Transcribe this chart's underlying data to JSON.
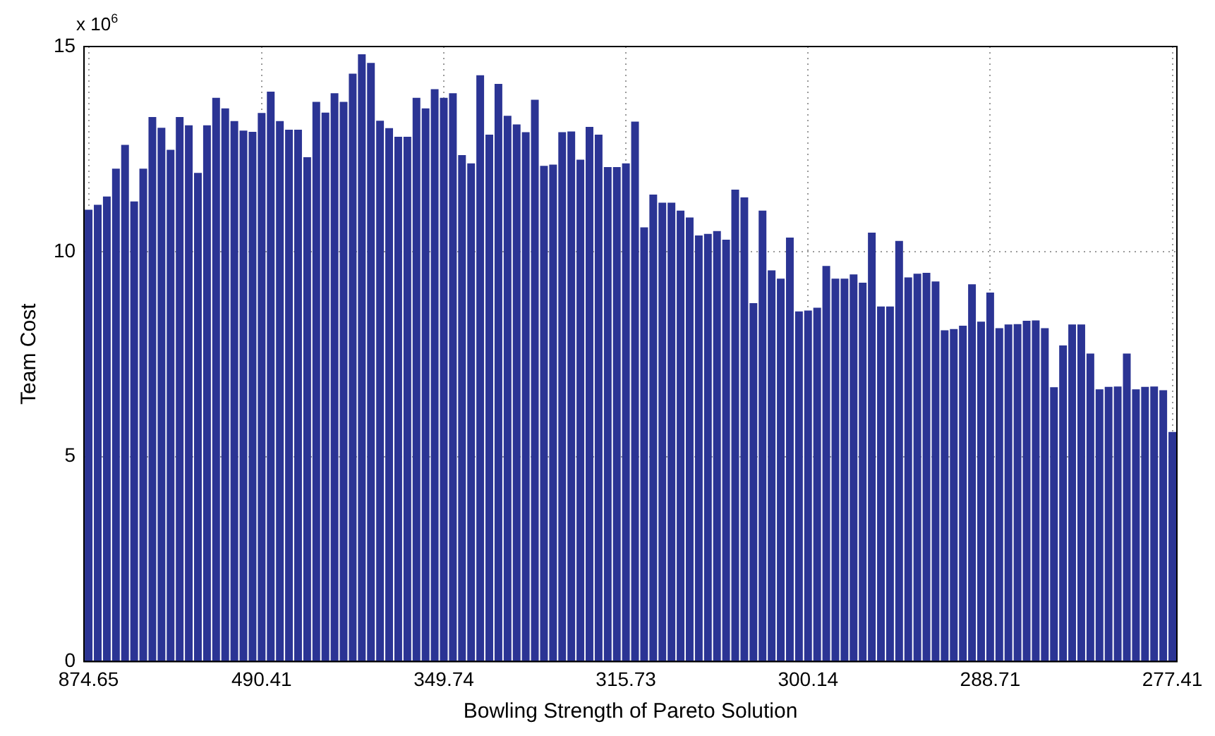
{
  "chart_data": {
    "type": "bar",
    "xlabel": "Bowling Strength of Pareto Solution",
    "ylabel": "Team Cost",
    "annotations": [
      "x 10$^{6}$"
    ],
    "categories": [
      "874.65",
      null,
      null,
      null,
      null,
      null,
      null,
      null,
      null,
      null,
      null,
      null,
      null,
      null,
      null,
      null,
      null,
      null,
      null,
      "490.41",
      null,
      null,
      null,
      null,
      null,
      null,
      null,
      null,
      null,
      null,
      null,
      null,
      null,
      null,
      null,
      null,
      null,
      null,
      null,
      "349.74",
      null,
      null,
      null,
      null,
      null,
      null,
      null,
      null,
      null,
      null,
      null,
      null,
      null,
      null,
      null,
      null,
      null,
      null,
      null,
      "315.73",
      null,
      null,
      null,
      null,
      null,
      null,
      null,
      null,
      null,
      null,
      null,
      null,
      null,
      null,
      null,
      null,
      null,
      null,
      null,
      "300.14",
      null,
      null,
      null,
      null,
      null,
      null,
      null,
      null,
      null,
      null,
      null,
      null,
      null,
      null,
      null,
      null,
      null,
      null,
      null,
      "288.71",
      null,
      null,
      null,
      null,
      null,
      null,
      null,
      null,
      null,
      null,
      null,
      null,
      null,
      null,
      null,
      null,
      null,
      null,
      null,
      "277.41"
    ],
    "values": [
      11.02,
      11.14,
      11.34,
      12.02,
      12.6,
      11.22,
      12.02,
      13.28,
      13.02,
      12.48,
      13.28,
      13.08,
      11.92,
      13.08,
      13.75,
      13.49,
      13.18,
      12.95,
      12.92,
      13.38,
      13.9,
      13.18,
      12.97,
      12.97,
      12.3,
      13.65,
      13.39,
      13.86,
      13.65,
      14.34,
      14.81,
      14.6,
      13.19,
      13.01,
      12.8,
      12.8,
      13.75,
      13.49,
      13.96,
      13.75,
      13.86,
      12.35,
      12.15,
      14.3,
      12.85,
      14.09,
      13.31,
      13.1,
      12.91,
      13.7,
      12.09,
      12.12,
      12.91,
      12.93,
      12.24,
      13.04,
      12.85,
      12.06,
      12.06,
      12.15,
      13.17,
      10.59,
      11.39,
      11.19,
      11.19,
      11.0,
      10.83,
      10.39,
      10.43,
      10.5,
      10.29,
      11.51,
      11.32,
      8.74,
      11.0,
      9.54,
      9.34,
      10.34,
      8.54,
      8.56,
      8.63,
      9.65,
      9.34,
      9.34,
      9.44,
      9.24,
      10.46,
      8.66,
      8.66,
      10.26,
      9.37,
      9.46,
      9.48,
      9.27,
      8.08,
      8.11,
      8.19,
      9.2,
      8.29,
      9.0,
      8.13,
      8.22,
      8.23,
      8.31,
      8.32,
      8.13,
      6.69,
      7.71,
      8.22,
      8.22,
      7.51,
      6.64,
      6.7,
      6.71,
      7.51,
      6.64,
      6.7,
      6.71,
      6.62,
      5.6
    ],
    "color": "#2b3494",
    "ylim": [
      0,
      15
    ],
    "yticks": [
      0,
      5,
      10,
      15
    ],
    "grid": true
  }
}
